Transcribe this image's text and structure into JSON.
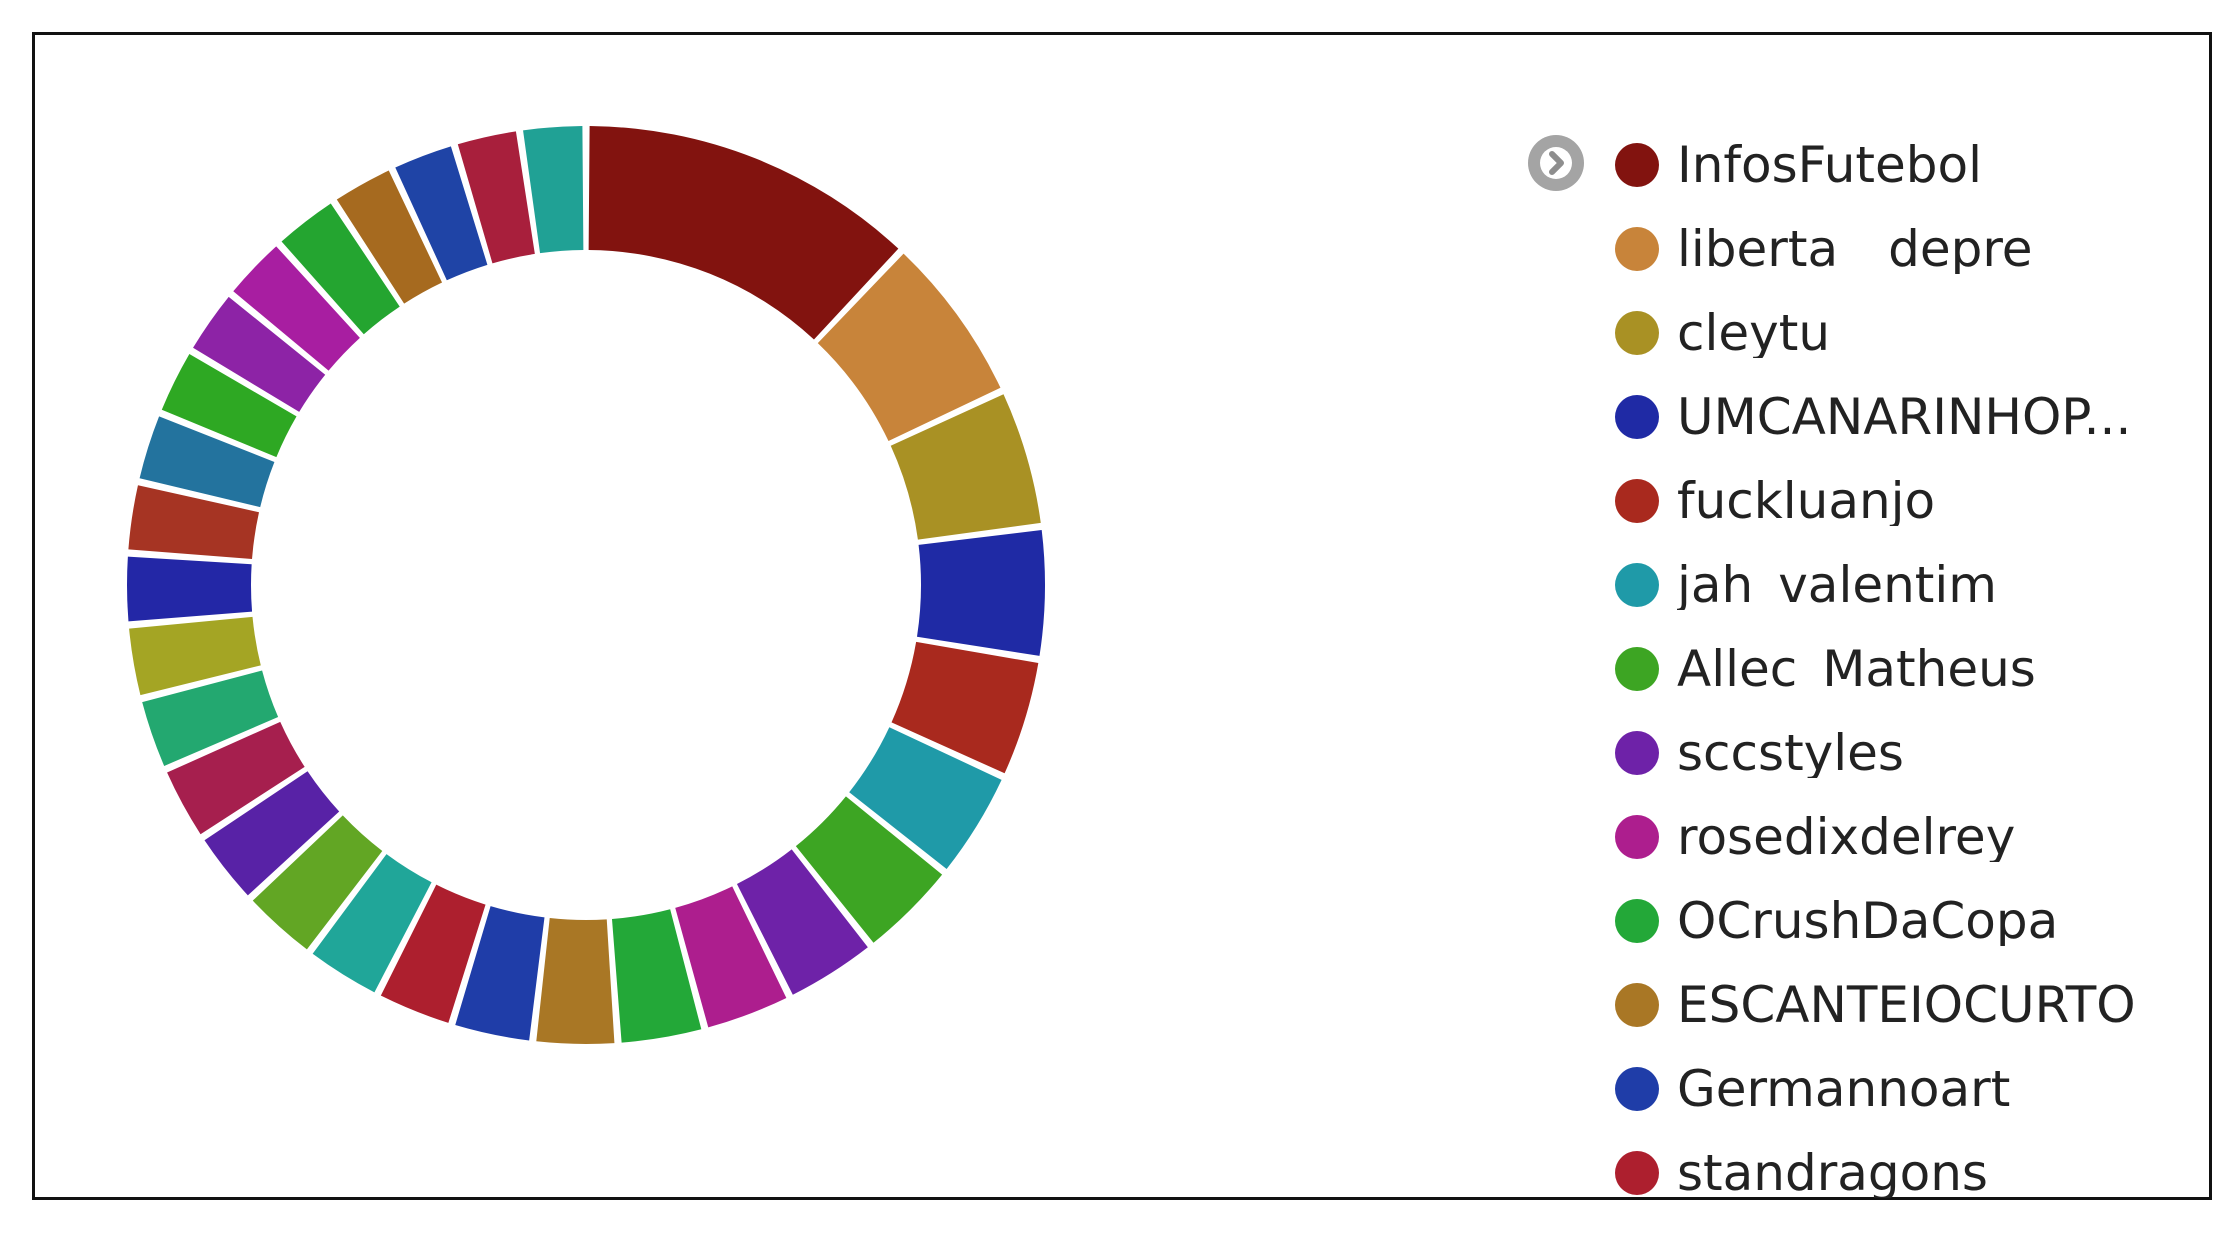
{
  "chart_data": {
    "type": "pie",
    "variant": "donut",
    "legend_position": "right",
    "legend": {
      "toggle_icon": "chevron-right-circle-icon",
      "visible_entries": 13
    },
    "slices": [
      {
        "label": "InfosFutebol",
        "value": 13.0,
        "color": "#82130f"
      },
      {
        "label": "liberta__depre",
        "value": 6.5,
        "color": "#c8843a"
      },
      {
        "label": "cleytu",
        "value": 5.3,
        "color": "#a99124"
      },
      {
        "label": "UMCANARINHOP...",
        "value": 5.0,
        "color": "#1f2aa5"
      },
      {
        "label": "fuckluanjo",
        "value": 4.6,
        "color": "#a9291e"
      },
      {
        "label": "jah_valentim",
        "value": 4.2,
        "color": "#1f9aa8"
      },
      {
        "label": "Allec_Matheus",
        "value": 3.9,
        "color": "#3da523"
      },
      {
        "label": "sccstyles",
        "value": 3.6,
        "color": "#6e22a8"
      },
      {
        "label": "rosedixdelrey",
        "value": 3.4,
        "color": "#ad1e8e"
      },
      {
        "label": "OCrushDaCopa",
        "value": 3.3,
        "color": "#23a838"
      },
      {
        "label": "ESCANTEIOCURTO",
        "value": 3.2,
        "color": "#a97725"
      },
      {
        "label": "Germannoart",
        "value": 3.1,
        "color": "#1f3da8"
      },
      {
        "label": "standragons",
        "value": 3.0,
        "color": "#ad1f2e"
      },
      {
        "label": "",
        "value": 3.0,
        "color": "#20a699"
      },
      {
        "label": "",
        "value": 3.0,
        "color": "#62a624"
      },
      {
        "label": "",
        "value": 2.9,
        "color": "#5822a6"
      },
      {
        "label": "",
        "value": 2.9,
        "color": "#a61f4e"
      },
      {
        "label": "",
        "value": 2.8,
        "color": "#23a870"
      },
      {
        "label": "",
        "value": 2.8,
        "color": "#a4a524"
      },
      {
        "label": "",
        "value": 2.7,
        "color": "#2327a6"
      },
      {
        "label": "",
        "value": 2.7,
        "color": "#a63423"
      },
      {
        "label": "",
        "value": 2.7,
        "color": "#23739e"
      },
      {
        "label": "",
        "value": 2.6,
        "color": "#2ea823"
      },
      {
        "label": "",
        "value": 2.6,
        "color": "#8d23a6"
      },
      {
        "label": "",
        "value": 2.6,
        "color": "#a81ea1"
      },
      {
        "label": "",
        "value": 2.6,
        "color": "#24a530"
      },
      {
        "label": "",
        "value": 2.5,
        "color": "#a66a1f"
      },
      {
        "label": "",
        "value": 2.5,
        "color": "#1f44a6"
      },
      {
        "label": "",
        "value": 2.5,
        "color": "#a81f3c"
      },
      {
        "label": "",
        "value": 2.5,
        "color": "#20a195"
      }
    ]
  }
}
